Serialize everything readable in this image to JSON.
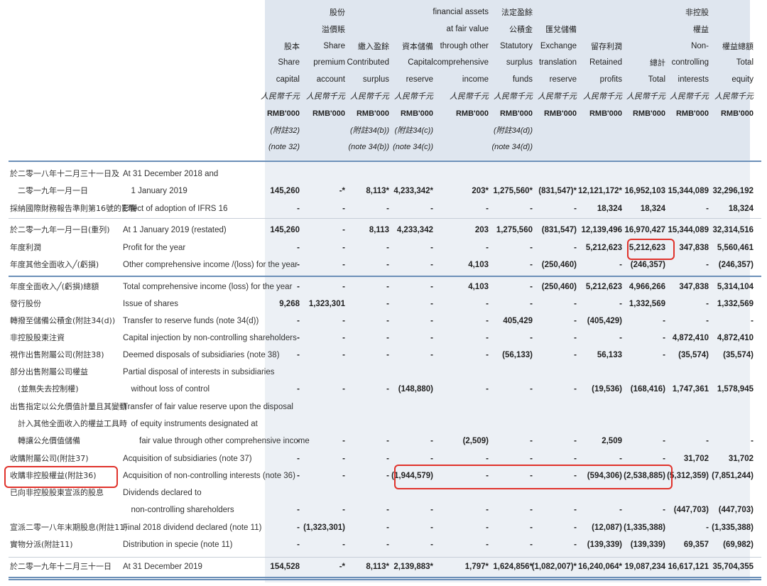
{
  "columns": [
    {
      "key": "share_capital",
      "lines": [
        {
          "t": "股本",
          "c": "zh"
        },
        {
          "t": "Share",
          "c": "en"
        },
        {
          "t": "capital",
          "c": "en"
        },
        {
          "t": "人民幣千元",
          "c": "it"
        },
        {
          "t": "RMB'000",
          "c": "b"
        },
        {
          "t": "(附註32)",
          "c": "it"
        },
        {
          "t": "(note 32)",
          "c": "it"
        }
      ]
    },
    {
      "key": "share_premium",
      "lines": [
        {
          "t": "股份",
          "c": "zh"
        },
        {
          "t": "溢價賬",
          "c": "zh"
        },
        {
          "t": "Share",
          "c": "en"
        },
        {
          "t": "premium",
          "c": "en"
        },
        {
          "t": "account",
          "c": "en"
        },
        {
          "t": "人民幣千元",
          "c": "it"
        },
        {
          "t": "RMB'000",
          "c": "b"
        }
      ]
    },
    {
      "key": "contributed_surplus",
      "lines": [
        {
          "t": "繳入盈餘",
          "c": "zh"
        },
        {
          "t": "Contributed",
          "c": "en"
        },
        {
          "t": "surplus",
          "c": "en"
        },
        {
          "t": "人民幣千元",
          "c": "it"
        },
        {
          "t": "RMB'000",
          "c": "b"
        },
        {
          "t": "(附註34(b))",
          "c": "it"
        },
        {
          "t": "(note 34(b))",
          "c": "it"
        }
      ]
    },
    {
      "key": "capital_reserve",
      "lines": [
        {
          "t": "資本儲備",
          "c": "zh"
        },
        {
          "t": "Capital",
          "c": "en"
        },
        {
          "t": "reserve",
          "c": "en"
        },
        {
          "t": "人民幣千元",
          "c": "it"
        },
        {
          "t": "RMB'000",
          "c": "b"
        },
        {
          "t": "(附註34(c))",
          "c": "it"
        },
        {
          "t": "(note 34(c))",
          "c": "it"
        }
      ]
    },
    {
      "key": "fvoci",
      "lines": [
        {
          "t": "financial assets",
          "c": "en"
        },
        {
          "t": "at fair value",
          "c": "en"
        },
        {
          "t": "through other",
          "c": "en"
        },
        {
          "t": "comprehensive",
          "c": "en"
        },
        {
          "t": "income",
          "c": "en"
        },
        {
          "t": "人民幣千元",
          "c": "it"
        },
        {
          "t": "RMB'000",
          "c": "b"
        }
      ]
    },
    {
      "key": "statutory_surplus",
      "lines": [
        {
          "t": "法定盈餘",
          "c": "zh"
        },
        {
          "t": "公積金",
          "c": "zh"
        },
        {
          "t": "Statutory",
          "c": "en"
        },
        {
          "t": "surplus",
          "c": "en"
        },
        {
          "t": "funds",
          "c": "en"
        },
        {
          "t": "人民幣千元",
          "c": "it"
        },
        {
          "t": "RMB'000",
          "c": "b"
        },
        {
          "t": "(附註34(d))",
          "c": "it"
        },
        {
          "t": "(note 34(d))",
          "c": "it"
        }
      ]
    },
    {
      "key": "exchange_reserve",
      "lines": [
        {
          "t": "匯兌儲備",
          "c": "zh"
        },
        {
          "t": "Exchange",
          "c": "en"
        },
        {
          "t": "translation",
          "c": "en"
        },
        {
          "t": "reserve",
          "c": "en"
        },
        {
          "t": "人民幣千元",
          "c": "it"
        },
        {
          "t": "RMB'000",
          "c": "b"
        }
      ]
    },
    {
      "key": "retained_profits",
      "lines": [
        {
          "t": "留存利潤",
          "c": "zh"
        },
        {
          "t": "Retained",
          "c": "en"
        },
        {
          "t": "profits",
          "c": "en"
        },
        {
          "t": "人民幣千元",
          "c": "it"
        },
        {
          "t": "RMB'000",
          "c": "b"
        }
      ]
    },
    {
      "key": "total",
      "lines": [
        {
          "t": "總計",
          "c": "zh"
        },
        {
          "t": "Total",
          "c": "en"
        },
        {
          "t": "人民幣千元",
          "c": "it"
        },
        {
          "t": "RMB'000",
          "c": "b"
        }
      ]
    },
    {
      "key": "nci",
      "lines": [
        {
          "t": "非控股",
          "c": "zh"
        },
        {
          "t": "權益",
          "c": "zh"
        },
        {
          "t": "Non-",
          "c": "en"
        },
        {
          "t": "controlling",
          "c": "en"
        },
        {
          "t": "interests",
          "c": "en"
        },
        {
          "t": "人民幣千元",
          "c": "it"
        },
        {
          "t": "RMB'000",
          "c": "b"
        }
      ]
    },
    {
      "key": "total_equity",
      "lines": [
        {
          "t": "權益總額",
          "c": "zh"
        },
        {
          "t": "Total",
          "c": "en"
        },
        {
          "t": "equity",
          "c": "en"
        },
        {
          "t": "人民幣千元",
          "c": "it"
        },
        {
          "t": "RMB'000",
          "c": "b"
        }
      ]
    }
  ],
  "rows": [
    {
      "zh": [
        "於二零一八年十二月三十一日及",
        "　二零一九年一月一日"
      ],
      "en": [
        "At 31 December 2018 and",
        "　1 January 2019"
      ],
      "values": [
        "145,260",
        "-*",
        "8,113*",
        "4,233,342*",
        "203*",
        "1,275,560*",
        "(831,547)*",
        "12,121,172*",
        "16,952,103",
        "15,344,089",
        "32,296,192"
      ]
    },
    {
      "zh": [
        "採納國際財務報告準則第16號的影響"
      ],
      "en": [
        "Effect of adoption of IFRS 16"
      ],
      "values": [
        "-",
        "-",
        "-",
        "-",
        "-",
        "-",
        "-",
        "18,324",
        "18,324",
        "-",
        "18,324"
      ]
    },
    {
      "zh": [
        "於二零一九年一月一日(重列)"
      ],
      "en": [
        "At 1 January 2019 (restated)"
      ],
      "values": [
        "145,260",
        "-",
        "8,113",
        "4,233,342",
        "203",
        "1,275,560",
        "(831,547)",
        "12,139,496",
        "16,970,427",
        "15,344,089",
        "32,314,516"
      ]
    },
    {
      "zh": [
        "年度利潤"
      ],
      "en": [
        "Profit for the year"
      ],
      "values": [
        "-",
        "-",
        "-",
        "-",
        "-",
        "-",
        "-",
        "5,212,623",
        "5,212,623",
        "347,838",
        "5,560,461"
      ]
    },
    {
      "zh": [
        "年度其他全面收入╱(虧損)"
      ],
      "en": [
        "Other comprehensive income /(loss) for the year"
      ],
      "values": [
        "-",
        "-",
        "-",
        "-",
        "4,103",
        "-",
        "(250,460)",
        "-",
        "(246,357)",
        "-",
        "(246,357)"
      ]
    },
    {
      "zh": [
        "年度全面收入╱(虧損)總額"
      ],
      "en": [
        "Total comprehensive income (loss) for the year"
      ],
      "values": [
        "-",
        "-",
        "-",
        "-",
        "4,103",
        "-",
        "(250,460)",
        "5,212,623",
        "4,966,266",
        "347,838",
        "5,314,104"
      ]
    },
    {
      "zh": [
        "發行股份"
      ],
      "en": [
        "Issue of shares"
      ],
      "values": [
        "9,268",
        "1,323,301",
        "-",
        "-",
        "-",
        "-",
        "-",
        "-",
        "1,332,569",
        "-",
        "1,332,569"
      ]
    },
    {
      "zh": [
        "轉撥至儲備公積金(附註34(d))"
      ],
      "en": [
        "Transfer to reserve funds (note 34(d))"
      ],
      "values": [
        "-",
        "-",
        "-",
        "-",
        "-",
        "405,429",
        "-",
        "(405,429)",
        "-",
        "-",
        "-"
      ]
    },
    {
      "zh": [
        "非控股股東注資"
      ],
      "en": [
        "Capital injection by non-controlling shareholders"
      ],
      "values": [
        "-",
        "-",
        "-",
        "-",
        "-",
        "-",
        "-",
        "-",
        "-",
        "4,872,410",
        "4,872,410"
      ]
    },
    {
      "zh": [
        "視作出售附屬公司(附註38)"
      ],
      "en": [
        "Deemed disposals of subsidiaries (note 38)"
      ],
      "values": [
        "-",
        "-",
        "-",
        "-",
        "-",
        "(56,133)",
        "-",
        "56,133",
        "-",
        "(35,574)",
        "(35,574)"
      ]
    },
    {
      "zh": [
        "部分出售附屬公司權益",
        "　(並無失去控制權)"
      ],
      "en": [
        "Partial disposal of interests in subsidiaries",
        "　without loss of control"
      ],
      "values": [
        "-",
        "-",
        "-",
        "(148,880)",
        "-",
        "-",
        "-",
        "(19,536)",
        "(168,416)",
        "1,747,361",
        "1,578,945"
      ]
    },
    {
      "zh": [
        "出售指定以公允價值計量且其變動",
        "　計入其他全面收入的權益工具時",
        "　轉讓公允價值儲備"
      ],
      "en": [
        "Transfer of fair value reserve upon the disposal",
        "　of equity instruments designated at",
        "　　fair value through other comprehensive income"
      ],
      "values": [
        "-",
        "-",
        "-",
        "-",
        "(2,509)",
        "-",
        "-",
        "2,509",
        "-",
        "-",
        "-"
      ]
    },
    {
      "zh": [
        "收購附屬公司(附註37)"
      ],
      "en": [
        "Acquisition of subsidiaries (note 37)"
      ],
      "values": [
        "-",
        "-",
        "-",
        "-",
        "-",
        "-",
        "-",
        "-",
        "-",
        "31,702",
        "31,702"
      ]
    },
    {
      "zh": [
        "收購非控股權益(附註36)"
      ],
      "en": [
        "Acquisition of non-controlling interests (note 36)"
      ],
      "values": [
        "-",
        "-",
        "-",
        "(1,944,579)",
        "-",
        "-",
        "-",
        "(594,306)",
        "(2,538,885)",
        "(5,312,359)",
        "(7,851,244)"
      ]
    },
    {
      "zh": [
        "已向非控股股東宣派的股息"
      ],
      "en": [
        "Dividends declared to",
        "　non-controlling shareholders"
      ],
      "values": [
        "-",
        "-",
        "-",
        "-",
        "-",
        "-",
        "-",
        "-",
        "-",
        "(447,703)",
        "(447,703)"
      ]
    },
    {
      "zh": [
        "宣派二零一八年末期股息(附註11)"
      ],
      "en": [
        "Final 2018 dividend declared (note 11)"
      ],
      "values": [
        "-",
        "(1,323,301)",
        "-",
        "-",
        "-",
        "-",
        "-",
        "(12,087)",
        "(1,335,388)",
        "-",
        "(1,335,388)"
      ]
    },
    {
      "zh": [
        "實物分派(附註11)"
      ],
      "en": [
        "Distribution in specie (note 11)"
      ],
      "values": [
        "-",
        "-",
        "-",
        "-",
        "-",
        "-",
        "-",
        "(139,339)",
        "(139,339)",
        "69,357",
        "(69,982)"
      ]
    },
    {
      "zh": [
        "於二零一九年十二月三十一日"
      ],
      "en": [
        "At 31 December 2019"
      ],
      "values": [
        "154,528",
        "-*",
        "8,113*",
        "2,139,883*",
        "1,797*",
        "1,624,856*",
        "(1,082,007)*",
        "16,240,064*",
        "19,087,234",
        "16,617,121",
        "35,704,355"
      ]
    }
  ],
  "highlights": {
    "color": "#e0322b",
    "boxes": [
      "profit-for-year-total",
      "acquisition-nci-label",
      "acquisition-nci-amounts"
    ]
  }
}
